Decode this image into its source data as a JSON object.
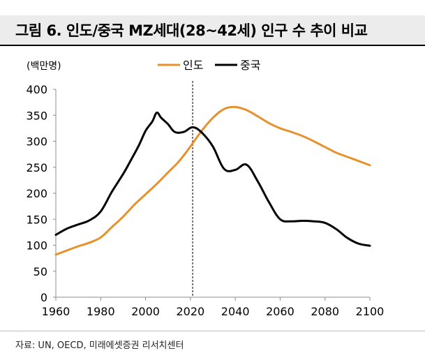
{
  "header": {
    "title": "그림 6. 인도/중국 MZ세대(28~42세) 인구 수 추이 비교"
  },
  "source": "자료: UN, OECD, 미래에셋증권 리서치센터",
  "colors": {
    "india": "#e8912c",
    "china": "#000000",
    "title_bg": "#ececec",
    "refline": "#444444"
  },
  "chart_data": {
    "type": "line",
    "title": "그림 6. 인도/중국 MZ세대(28~42세) 인구 수 추이 비교",
    "ylabel": "(백만명)",
    "xlabel": "",
    "xlim": [
      1960,
      2100
    ],
    "ylim": [
      0,
      400
    ],
    "x_ticks": [
      1960,
      1980,
      2000,
      2020,
      2040,
      2060,
      2080,
      2100
    ],
    "y_ticks": [
      0,
      50,
      100,
      150,
      200,
      250,
      300,
      350,
      400
    ],
    "x_tick_labels": [
      "1960",
      "1980",
      "2000",
      "2020",
      "2040",
      "2060",
      "2080",
      "2100"
    ],
    "y_tick_labels": [
      "0",
      "50",
      "100",
      "150",
      "200",
      "250",
      "300",
      "350",
      "400"
    ],
    "reference_line_x": 2021,
    "legend": {
      "placement": "top-center",
      "entries": [
        "인도",
        "중국"
      ]
    },
    "series": [
      {
        "name": "인도",
        "color": "#e8912c",
        "x": [
          1960,
          1965,
          1970,
          1975,
          1980,
          1985,
          1990,
          1995,
          2000,
          2005,
          2010,
          2015,
          2020,
          2025,
          2030,
          2035,
          2040,
          2045,
          2050,
          2055,
          2060,
          2065,
          2070,
          2075,
          2080,
          2085,
          2090,
          2095,
          2100
        ],
        "values": [
          82,
          90,
          98,
          105,
          115,
          135,
          155,
          178,
          198,
          218,
          240,
          262,
          290,
          320,
          345,
          362,
          366,
          360,
          348,
          335,
          325,
          318,
          310,
          300,
          289,
          278,
          270,
          262,
          254
        ]
      },
      {
        "name": "중국",
        "color": "#000000",
        "x": [
          1960,
          1965,
          1970,
          1975,
          1980,
          1985,
          1990,
          1993,
          1997,
          2000,
          2003,
          2005,
          2007,
          2010,
          2013,
          2017,
          2021,
          2025,
          2030,
          2035,
          2040,
          2045,
          2050,
          2055,
          2060,
          2065,
          2070,
          2075,
          2080,
          2085,
          2090,
          2095,
          2100
        ],
        "values": [
          120,
          132,
          140,
          148,
          165,
          203,
          237,
          260,
          292,
          320,
          338,
          355,
          345,
          333,
          318,
          318,
          327,
          317,
          290,
          247,
          245,
          255,
          223,
          183,
          150,
          146,
          147,
          146,
          143,
          131,
          114,
          103,
          99
        ]
      }
    ]
  }
}
